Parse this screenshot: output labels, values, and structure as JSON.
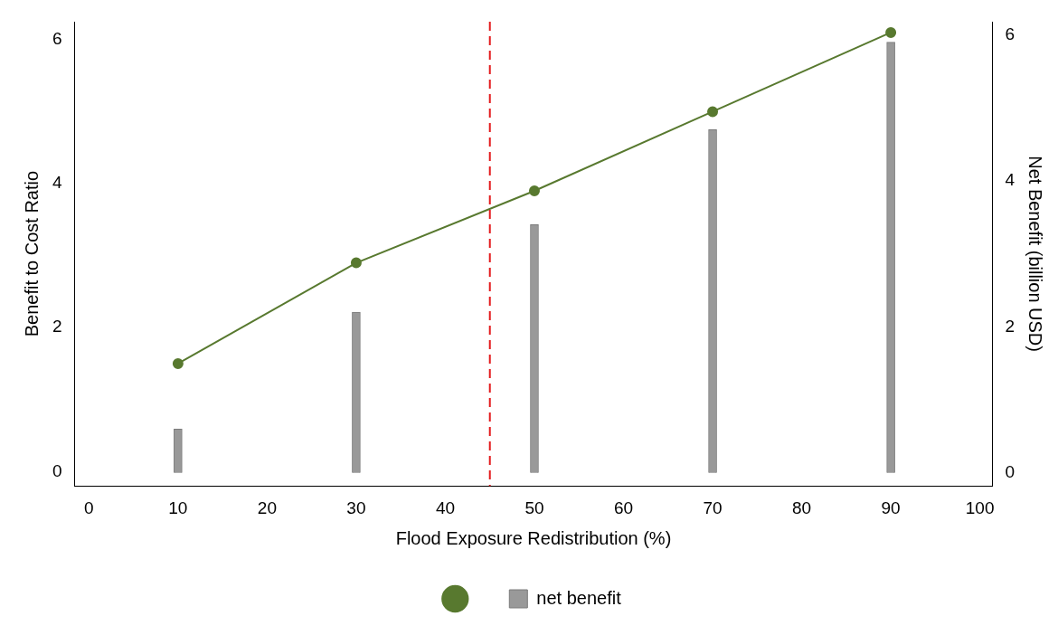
{
  "chart_data": {
    "type": "bar_line",
    "xlabel": "Flood Exposure Redistribution (%)",
    "ylabel": "Benefit to Cost Ratio",
    "y2label": "Net Benefit (billion USD)",
    "x": [
      10,
      30,
      50,
      70,
      90
    ],
    "series": [
      {
        "name": null,
        "type": "line",
        "color": "#58792f",
        "marker": "circle",
        "values": [
          1.5,
          2.9,
          3.9,
          5.0,
          6.1
        ]
      },
      {
        "name": "net benefit",
        "type": "bar",
        "color": "#999999",
        "axis": "y2",
        "values": [
          0.6,
          2.2,
          3.4,
          4.7,
          5.9
        ]
      }
    ],
    "xlim": [
      -1.6,
      101.4
    ],
    "xticks": [
      0,
      10,
      20,
      30,
      40,
      50,
      60,
      70,
      80,
      90,
      100
    ],
    "ylim": [
      -0.2,
      6.25
    ],
    "yticks": [
      0,
      2,
      4,
      6
    ],
    "y2lim": [
      -0.18,
      6.18
    ],
    "y2ticks": [
      0,
      2,
      4,
      6
    ],
    "grid": false,
    "legend": "bottom",
    "reference_lines": [
      {
        "x": 45,
        "color": "#e31a1c",
        "line_style": "dashed"
      }
    ]
  }
}
